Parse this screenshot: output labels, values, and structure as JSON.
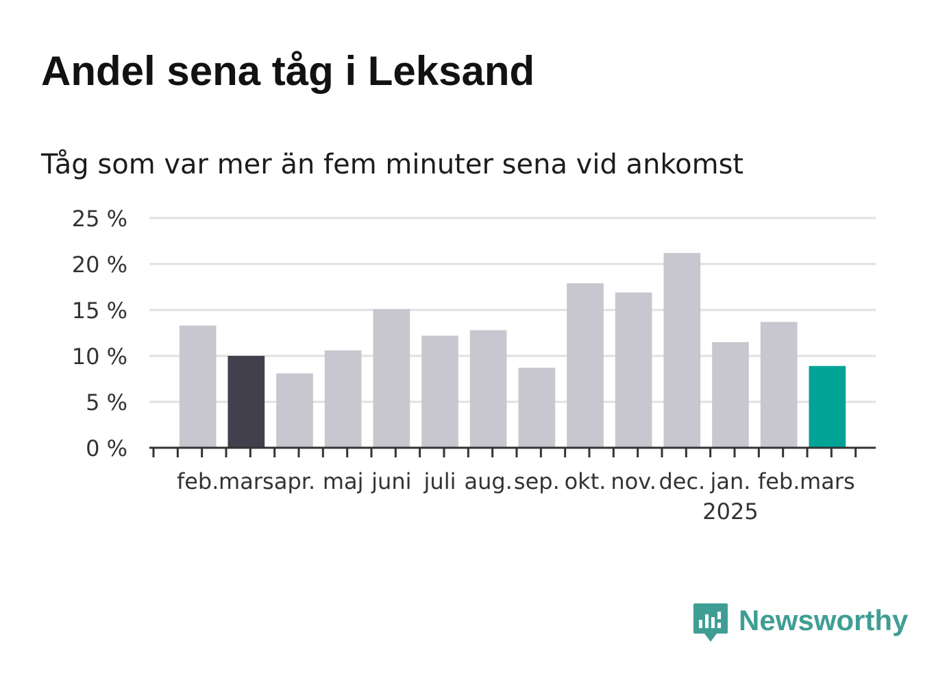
{
  "title": "Andel sena tåg i Leksand",
  "subtitle": "Tåg som var mer än fem minuter sena vid ankomst",
  "logo": {
    "text": "Newsworthy",
    "icon": "bar-chart-speech-bubble-icon",
    "color": "#3f9e94"
  },
  "colors": {
    "default_bar": "#c8c7d0",
    "previous_year_bar": "#42404c",
    "current_bar": "#00a497",
    "gridline": "#e0e0e0",
    "axis": "#333333"
  },
  "chart_data": {
    "type": "bar",
    "categories": [
      "feb.",
      "mars",
      "apr.",
      "maj",
      "juni",
      "juli",
      "aug.",
      "sep.",
      "okt.",
      "nov.",
      "dec.",
      "jan.",
      "feb.",
      "mars"
    ],
    "category_sublabels": [
      "",
      "",
      "",
      "",
      "",
      "",
      "",
      "",
      "",
      "",
      "",
      "2025",
      "",
      ""
    ],
    "values": [
      13.3,
      10.0,
      8.1,
      10.6,
      15.1,
      12.2,
      12.8,
      8.7,
      17.9,
      16.9,
      21.2,
      11.5,
      13.7,
      8.9
    ],
    "highlight": [
      null,
      "previous_year",
      null,
      null,
      null,
      null,
      null,
      null,
      null,
      null,
      null,
      null,
      null,
      "current"
    ],
    "ylim": [
      0,
      25
    ],
    "yticks": [
      0,
      5,
      10,
      15,
      20,
      25
    ],
    "ytick_labels": [
      "0 %",
      "5 %",
      "10 %",
      "15 %",
      "20 %",
      "25 %"
    ],
    "xlabel": "",
    "ylabel": "",
    "grid": true
  }
}
